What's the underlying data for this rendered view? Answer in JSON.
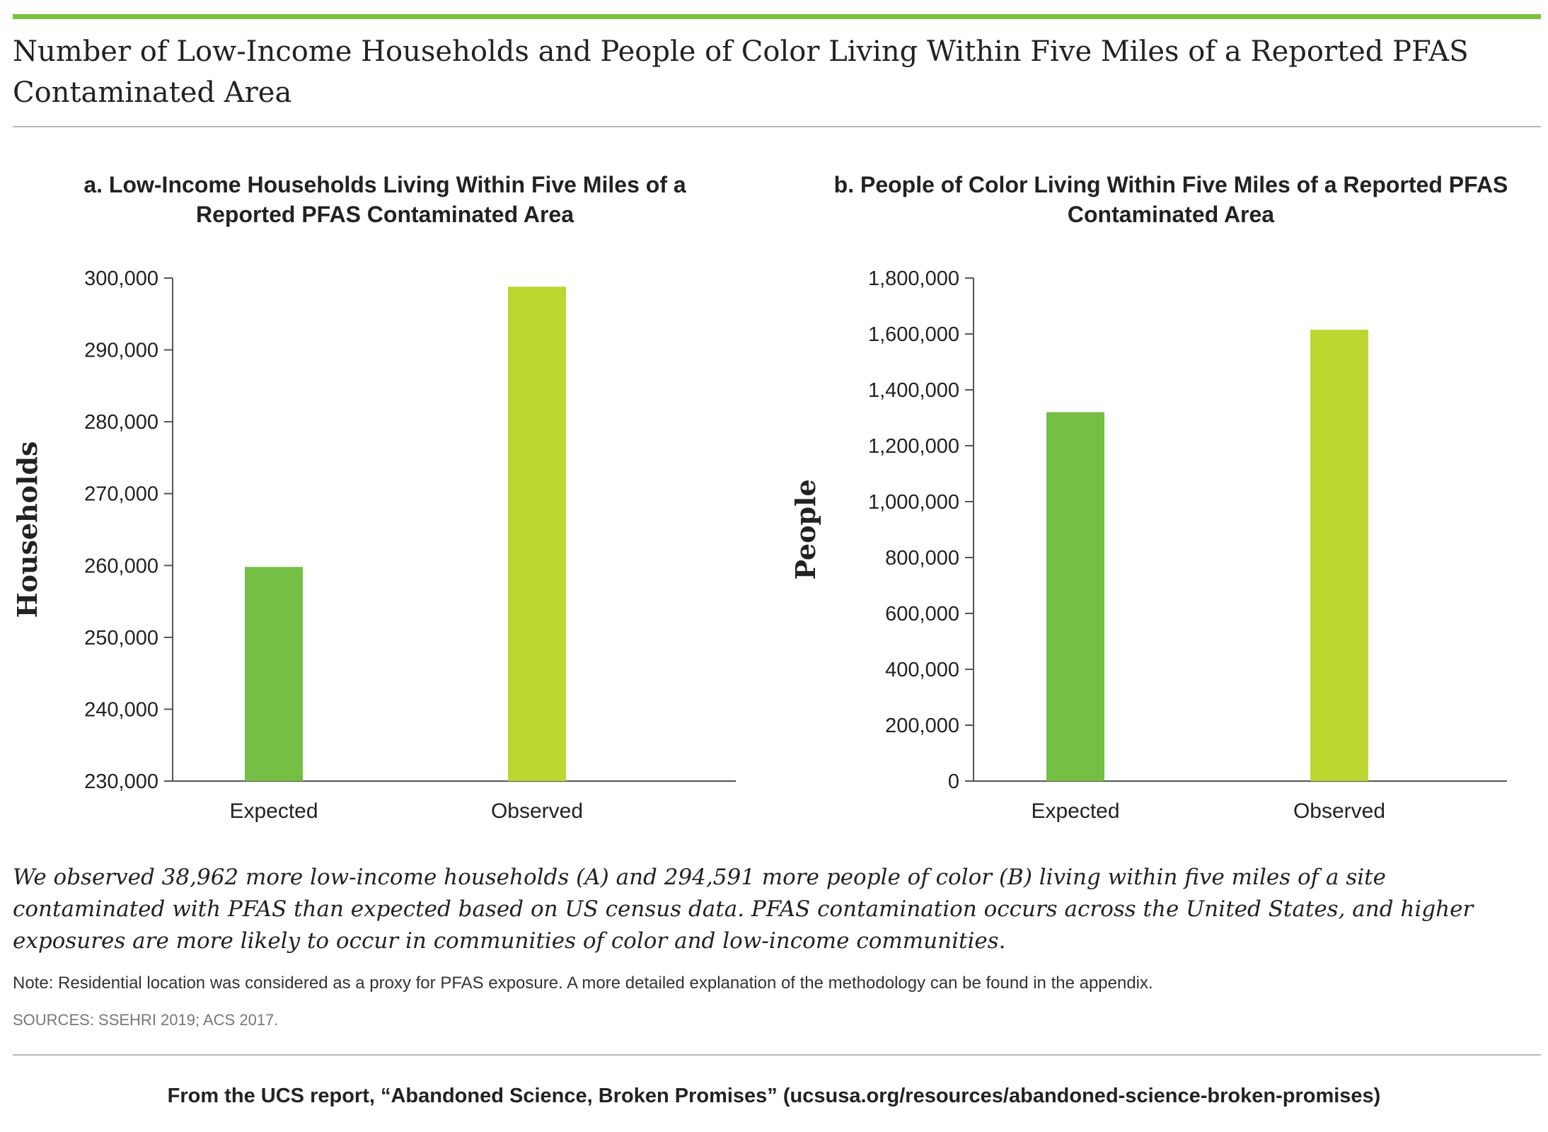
{
  "colors": {
    "accent": "#7dc242",
    "expected": "#74bf44",
    "observed": "#bdd630"
  },
  "title": "Number of Low-Income Households and People of Color Living Within Five Miles of a Reported PFAS Contaminated Area",
  "caption": "We observed 38,962 more low-income households (A) and 294,591 more people of color (B) living within five miles of a site contaminated with PFAS than expected based on US census data. PFAS contamination occurs across the United States, and higher exposures are more likely to occur in communities of color and low-income communities.",
  "note": "Note: Residential location was considered as a proxy for PFAS exposure. A more detailed explanation of the methodology can be found in the appendix.",
  "sources": "SOURCES: SSEHRI 2019; ACS 2017.",
  "footer": "From the UCS report, “Abandoned Science, Broken Promises” (ucsusa.org/resources/abandoned-science-broken-promises)",
  "chart_data": [
    {
      "type": "bar",
      "title": "a. Low-Income Households Living Within Five Miles of a Reported PFAS Contaminated Area",
      "xlabel": "",
      "ylabel": "Households",
      "categories": [
        "Expected",
        "Observed"
      ],
      "values": [
        259800,
        298800
      ],
      "ylim": [
        230000,
        300000
      ],
      "yticks": [
        230000,
        240000,
        250000,
        260000,
        270000,
        280000,
        290000,
        300000
      ],
      "ytick_labels": [
        "230,000",
        "240,000",
        "250,000",
        "260,000",
        "270,000",
        "280,000",
        "290,000",
        "300,000"
      ],
      "grid": false,
      "legend": "none"
    },
    {
      "type": "bar",
      "title": "b. People of Color Living Within Five Miles of a Reported PFAS Contaminated Area",
      "xlabel": "",
      "ylabel": "People",
      "categories": [
        "Expected",
        "Observed"
      ],
      "values": [
        1320000,
        1615000
      ],
      "ylim": [
        0,
        1800000
      ],
      "yticks": [
        0,
        200000,
        400000,
        600000,
        800000,
        1000000,
        1200000,
        1400000,
        1600000,
        1800000
      ],
      "ytick_labels": [
        "0",
        "200,000",
        "400,000",
        "600,000",
        "800,000",
        "1,000,000",
        "1,200,000",
        "1,400,000",
        "1,600,000",
        "1,800,000"
      ],
      "grid": false,
      "legend": "none"
    }
  ]
}
